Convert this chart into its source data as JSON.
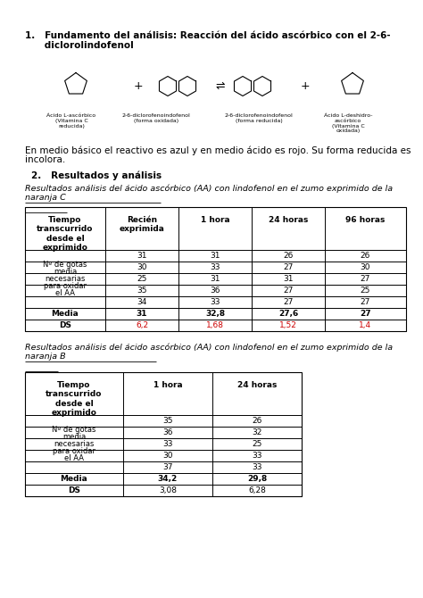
{
  "title1_line1": "1.   Fundamento del análisis: Reacción del ácido ascórbico con el 2-6-",
  "title1_line2": "      diclorolindofenol",
  "body_line1": "En medio básico el reactivo es azul y en medio ácido es rojo. Su forma reducida es",
  "body_line2": "incolora.",
  "section2": "2.   Resultados y análisis",
  "table1_title_line1": "Resultados análisis del ácido ascórbico (AA) con lindofenol en el zumo exprimido de la",
  "table1_title_line2": "naranja C",
  "table1_header": [
    "Tiempo\ntranscurrido\ndesde el\nexprimido",
    "Recién\nexprimida",
    "1 hora",
    "24 horas",
    "96 horas"
  ],
  "table1_row_label": "Nº de gotas\nmedia\nnecesarias\npara oxidar\nel AA",
  "table1_data": [
    [
      31,
      31,
      26,
      26
    ],
    [
      30,
      33,
      27,
      30
    ],
    [
      25,
      31,
      31,
      27
    ],
    [
      35,
      36,
      27,
      25
    ],
    [
      34,
      33,
      27,
      27
    ]
  ],
  "table1_media": [
    "Media",
    "31",
    "32,8",
    "27,6",
    "27"
  ],
  "table1_ds": [
    "DS",
    "6,2",
    "1,68",
    "1,52",
    "1,4"
  ],
  "table1_ds_color": "#cc0000",
  "table2_title_line1": "Resultados análisis del ácido ascórbico (AA) con lindofenol en el zumo exprimido de la",
  "table2_title_line2": "naranja B",
  "table2_header": [
    "Tiempo\ntranscurrido\ndesde el\nexprimido",
    "1 hora",
    "24 horas"
  ],
  "table2_row_label": "Nº de gotas\nmedia\nnecesarias\npara oxidar\nel AA",
  "table2_data": [
    [
      35,
      26
    ],
    [
      36,
      32
    ],
    [
      33,
      25
    ],
    [
      30,
      33
    ],
    [
      37,
      33
    ]
  ],
  "table2_media": [
    "Media",
    "34,2",
    "29,8"
  ],
  "table2_ds": [
    "DS",
    "3,08",
    "6,28"
  ],
  "bg_color": "#ffffff",
  "chem_labels": [
    "Ácido L-ascórbico\n(Vitamina C\nreducida)",
    "2-6-diclorofenoindofenol\n(forma oxidada)",
    "2-6-diclorofenoindofenol\n(forma reducida)",
    "Ácido L-deshidro-\nascórbico\n(Vitamina C\noxidada)"
  ]
}
